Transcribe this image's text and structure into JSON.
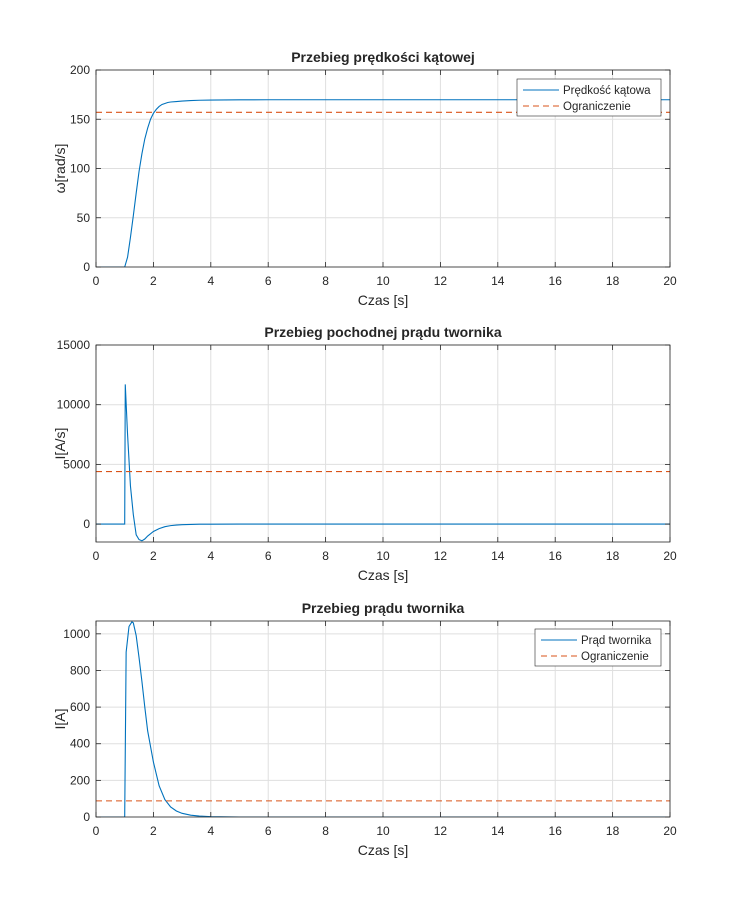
{
  "colors": {
    "series": "#0072BD",
    "limit": "#D95319",
    "grid": "#dfdfdf",
    "axis": "#262626"
  },
  "chart_data": [
    {
      "type": "line",
      "title": "Przebieg prędkości kątowej",
      "xlabel": "Czas [s]",
      "ylabel": "ω[rad/s]",
      "xlim": [
        0,
        20
      ],
      "ylim": [
        0,
        200
      ],
      "xticks": [
        0,
        2,
        4,
        6,
        8,
        10,
        12,
        14,
        16,
        18,
        20
      ],
      "yticks": [
        0,
        50,
        100,
        150,
        200
      ],
      "grid": true,
      "legend": "top-right",
      "series": [
        {
          "name": "Prędkość kątowa",
          "style": "solid",
          "color": "#0072BD",
          "x": [
            0,
            1.0,
            1.1,
            1.2,
            1.3,
            1.4,
            1.5,
            1.6,
            1.7,
            1.8,
            1.9,
            2.0,
            2.1,
            2.2,
            2.3,
            2.4,
            2.5,
            2.6,
            2.8,
            3.0,
            3.3,
            3.6,
            4.0,
            5.0,
            6.0,
            10.0,
            20.0
          ],
          "y": [
            0,
            0,
            10,
            30,
            52,
            75,
            97,
            115,
            130,
            141,
            150,
            156,
            160,
            163,
            165,
            166,
            167,
            167.5,
            168,
            168.5,
            169,
            169.3,
            169.5,
            169.7,
            169.8,
            169.8,
            169.8
          ]
        },
        {
          "name": "Ograniczenie",
          "style": "dashed",
          "color": "#D95319",
          "x": [
            0,
            20
          ],
          "y": [
            157,
            157
          ]
        }
      ]
    },
    {
      "type": "line",
      "title": "Przebieg pochodnej prądu twornika",
      "xlabel": "Czas [s]",
      "ylabel": "I[A/s]",
      "xlim": [
        0,
        20
      ],
      "ylim": [
        -1500,
        15000
      ],
      "xticks": [
        0,
        2,
        4,
        6,
        8,
        10,
        12,
        14,
        16,
        18,
        20
      ],
      "yticks": [
        0,
        5000,
        10000,
        15000
      ],
      "grid": true,
      "legend": "none",
      "series": [
        {
          "style": "solid",
          "color": "#0072BD",
          "x": [
            0,
            1.0,
            1.02,
            1.1,
            1.2,
            1.3,
            1.4,
            1.5,
            1.6,
            1.7,
            1.8,
            2.0,
            2.2,
            2.4,
            2.6,
            2.8,
            3.0,
            3.3,
            3.6,
            4.0,
            5.0,
            20.0
          ],
          "y": [
            0,
            0,
            11700,
            7500,
            3200,
            800,
            -900,
            -1300,
            -1400,
            -1250,
            -1000,
            -620,
            -380,
            -220,
            -130,
            -80,
            -50,
            -25,
            -12,
            -5,
            0,
            0
          ]
        },
        {
          "style": "dashed",
          "color": "#D95319",
          "x": [
            0,
            20
          ],
          "y": [
            4400,
            4400
          ]
        }
      ]
    },
    {
      "type": "line",
      "title": "Przebieg prądu twornika",
      "xlabel": "Czas [s]",
      "ylabel": "I[A]",
      "xlim": [
        0,
        20
      ],
      "ylim": [
        0,
        1070
      ],
      "xticks": [
        0,
        2,
        4,
        6,
        8,
        10,
        12,
        14,
        16,
        18,
        20
      ],
      "yticks": [
        0,
        200,
        400,
        600,
        800,
        1000
      ],
      "grid": true,
      "legend": "top-right",
      "series": [
        {
          "name": "Prąd twornika",
          "style": "solid",
          "color": "#0072BD",
          "x": [
            0,
            1.0,
            1.05,
            1.15,
            1.25,
            1.3,
            1.4,
            1.5,
            1.6,
            1.7,
            1.8,
            2.0,
            2.2,
            2.4,
            2.6,
            2.8,
            3.0,
            3.3,
            3.6,
            4.0,
            5.0,
            20.0
          ],
          "y": [
            0,
            0,
            900,
            1040,
            1065,
            1060,
            990,
            870,
            740,
            600,
            470,
            300,
            170,
            95,
            55,
            33,
            20,
            10,
            5,
            2,
            0,
            0
          ]
        },
        {
          "name": "Ograniczenie",
          "style": "dashed",
          "color": "#D95319",
          "x": [
            0,
            20
          ],
          "y": [
            88,
            88
          ]
        }
      ]
    }
  ]
}
